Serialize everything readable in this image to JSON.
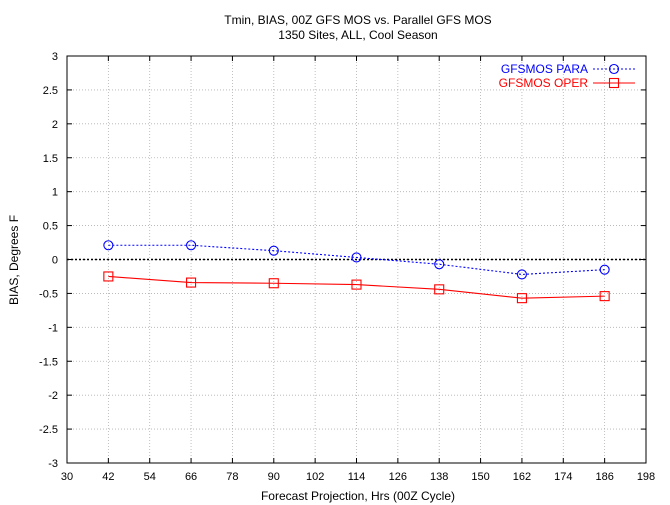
{
  "chart_data": {
    "type": "line",
    "title": "Tmin, BIAS, 00Z GFS MOS vs. Parallel GFS MOS",
    "subtitle": "1350 Sites, ALL, Cool Season",
    "xlabel": "Forecast Projection, Hrs (00Z Cycle)",
    "ylabel": "BIAS, Degrees F",
    "xlim": [
      30,
      198
    ],
    "ylim": [
      -3,
      3
    ],
    "x_ticks": [
      "30",
      "42",
      "54",
      "66",
      "78",
      "90",
      "102",
      "114",
      "126",
      "138",
      "150",
      "162",
      "174",
      "186",
      "198"
    ],
    "y_ticks": [
      "3",
      "2.5",
      "2",
      "1.5",
      "1",
      "0.5",
      "0",
      "-0.5",
      "-1",
      "-1.5",
      "-2",
      "-2.5",
      "-3"
    ],
    "grid": true,
    "zero_line": true,
    "legend_position": "top-right",
    "x": [
      42,
      66,
      90,
      114,
      138,
      162,
      186
    ],
    "series": [
      {
        "name": "GFSMOS PARA",
        "values": [
          0.21,
          0.21,
          0.13,
          0.03,
          -0.07,
          -0.22,
          -0.15
        ],
        "color": "#0000ff",
        "marker": "circle",
        "line_style": "dotted"
      },
      {
        "name": "GFSMOS OPER",
        "values": [
          -0.25,
          -0.34,
          -0.35,
          -0.37,
          -0.44,
          -0.57,
          -0.54
        ],
        "color": "#ff0000",
        "marker": "square",
        "line_style": "solid"
      }
    ]
  }
}
